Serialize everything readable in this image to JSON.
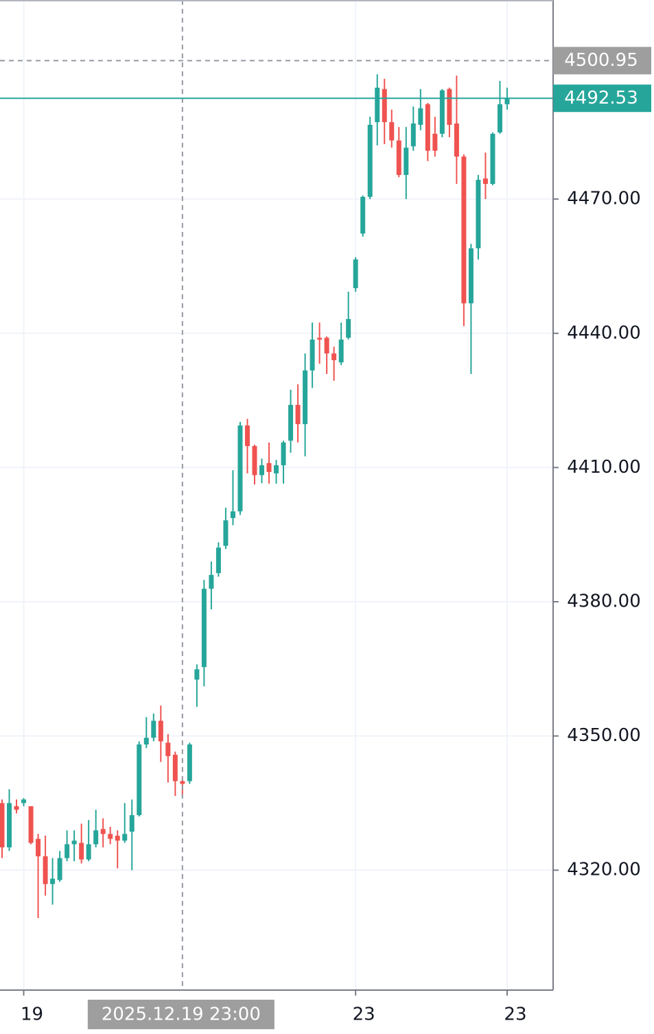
{
  "chart_data": {
    "type": "candlestick",
    "up_color": "#26a69a",
    "down_color": "#ef5350",
    "grid": true,
    "categories": [
      null,
      null,
      null,
      "19",
      null,
      null,
      null,
      null,
      null,
      null,
      null,
      null,
      null,
      null,
      null,
      null,
      null,
      null,
      null,
      null,
      null,
      null,
      null,
      null,
      null,
      "2025.12.19 23:00",
      null,
      null,
      null,
      null,
      null,
      null,
      null,
      null,
      null,
      null,
      null,
      null,
      null,
      null,
      null,
      null,
      null,
      null,
      null,
      null,
      null,
      null,
      null,
      "23",
      null,
      null,
      null,
      null,
      null,
      null,
      null,
      null,
      null,
      null,
      null,
      null,
      null,
      null,
      null,
      null,
      null,
      null,
      null,
      null,
      "23"
    ],
    "open": [
      4335.0,
      4325.1,
      4334.3,
      4335.0,
      4334.3,
      4327.0,
      4323.1,
      4316.9,
      4317.8,
      4322.7,
      4325.8,
      4326.1,
      4322.4,
      4325.8,
      4329.2,
      4328.1,
      4327.7,
      4326.6,
      4328.6,
      4332.3,
      4348.1,
      4349.6,
      4353.4,
      4348.5,
      4345.8,
      4339.9,
      4339.9,
      4362.6,
      4365.4,
      4382.9,
      4386.4,
      4392.5,
      4398.7,
      4400.2,
      4419.4,
      4414.8,
      4408.3,
      4411.0,
      4408.7,
      4410.5,
      4416.0,
      4424.0,
      4419.7,
      4431.7,
      4439.0,
      4439.0,
      4435.5,
      4433.5,
      4439.0,
      4450.1,
      4462.3,
      4470.5,
      4487.2,
      4494.6,
      4487.2,
      4483.1,
      4475.4,
      4481.8,
      4486.6,
      4491.2,
      4484.6,
      4484.6,
      4494.6,
      4486.9,
      4479.5,
      4446.7,
      4459.0,
      4474.6,
      4473.4,
      4484.9,
      4491.2
    ],
    "high": [
      4335.8,
      4338.1,
      4335.8,
      4336.1,
      4334.3,
      4328.1,
      4327.7,
      4322.7,
      4324.3,
      4328.9,
      4328.9,
      4330.4,
      4331.2,
      4333.5,
      4331.6,
      4329.7,
      4328.9,
      4335.0,
      4335.8,
      4348.8,
      4354.2,
      4355.0,
      4356.8,
      4350.4,
      4346.5,
      4340.4,
      4348.5,
      4366.0,
      4384.9,
      4389.0,
      4393.3,
      4401.0,
      4409.4,
      4420.2,
      4420.9,
      4415.1,
      4412.0,
      4415.6,
      4411.7,
      4416.0,
      4427.4,
      4428.6,
      4435.5,
      4442.4,
      4442.4,
      4439.3,
      4437.0,
      4442.4,
      4449.3,
      4457.0,
      4470.8,
      4488.4,
      4497.9,
      4496.9,
      4490.0,
      4486.1,
      4486.1,
      4490.7,
      4494.6,
      4491.5,
      4488.4,
      4494.6,
      4494.9,
      4497.6,
      4480.0,
      4460.0,
      4475.4,
      4480.4,
      4484.9,
      4496.4,
      4494.9
    ],
    "low": [
      4322.7,
      4324.3,
      4332.7,
      4334.3,
      4325.8,
      4309.3,
      4314.3,
      4312.3,
      4317.4,
      4322.0,
      4322.0,
      4321.5,
      4322.0,
      4325.1,
      4325.1,
      4325.8,
      4320.4,
      4326.1,
      4320.0,
      4332.0,
      4347.3,
      4348.8,
      4344.2,
      4339.6,
      4336.6,
      4336.6,
      4339.3,
      4356.5,
      4361.1,
      4378.3,
      4385.6,
      4391.8,
      4397.1,
      4399.4,
      4408.7,
      4406.2,
      4406.5,
      4406.4,
      4406.4,
      4406.4,
      4413.3,
      4415.6,
      4412.5,
      4427.8,
      4433.2,
      4430.9,
      4429.4,
      4432.9,
      4438.6,
      4449.3,
      4461.6,
      4470.0,
      4482.0,
      4482.3,
      4481.5,
      4474.9,
      4470.0,
      4480.8,
      4485.4,
      4478.5,
      4479.5,
      4483.8,
      4483.8,
      4473.4,
      4441.6,
      4430.9,
      4456.5,
      4470.0,
      4473.1,
      4484.6,
      4490.0
    ],
    "close": [
      4325.1,
      4335.0,
      4333.5,
      4335.8,
      4326.1,
      4323.1,
      4316.9,
      4318.1,
      4322.7,
      4325.8,
      4326.6,
      4322.4,
      4325.8,
      4328.9,
      4328.1,
      4327.0,
      4326.6,
      4328.1,
      4332.3,
      4348.1,
      4349.6,
      4353.4,
      4348.8,
      4345.5,
      4339.9,
      4339.3,
      4348.1,
      4364.9,
      4382.9,
      4386.0,
      4392.1,
      4398.2,
      4400.2,
      4419.4,
      4414.8,
      4408.3,
      4410.5,
      4409.0,
      4410.5,
      4415.6,
      4424.0,
      4419.7,
      4431.7,
      4438.6,
      4438.6,
      4435.5,
      4434.0,
      4438.6,
      4443.2,
      4456.5,
      4470.5,
      4486.6,
      4494.9,
      4487.2,
      4483.1,
      4475.4,
      4481.5,
      4486.9,
      4490.3,
      4480.8,
      4480.8,
      4494.3,
      4486.6,
      4479.5,
      4446.7,
      4459.0,
      4474.3,
      4473.4,
      4484.6,
      4491.2,
      4492.53
    ],
    "crosshair": {
      "y": 4500.95
    },
    "ylim": [
      4293.2,
      4514.5
    ],
    "yticks": [
      {
        "value": 4320,
        "label": "4320.00"
      },
      {
        "value": 4350,
        "label": "4350.00"
      },
      {
        "value": 4380,
        "label": "4380.00"
      },
      {
        "value": 4410,
        "label": "4410.00"
      },
      {
        "value": 4440,
        "label": "4440.00"
      },
      {
        "value": 4470,
        "label": "4470.00"
      }
    ]
  }
}
